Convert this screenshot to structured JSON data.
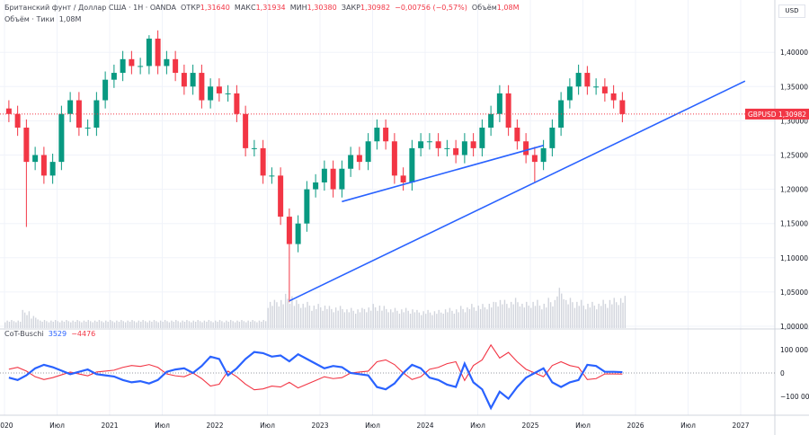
{
  "header": {
    "symbol_title": "Британский фунт / Доллар США · 1H · OANDA",
    "open_label": "ОТКР",
    "open": "1,31640",
    "high_label": "МАКС",
    "high": "1,31934",
    "low_label": "МИН",
    "low": "1,30380",
    "close_label": "ЗАКР",
    "close": "1,30982",
    "change": "−0,00756 (−0,57%)",
    "volume_label": "Объём",
    "volume": "1,08M",
    "volume_line_label": "Объём · Тики",
    "volume_line_value": "1,08M"
  },
  "price_axis": {
    "currency": "USD",
    "ticks": [
      "1,40000",
      "1,35000",
      "1,30000",
      "1,25000",
      "1,20000",
      "1,15000",
      "1,10000",
      "1,05000",
      "1,00000"
    ]
  },
  "last_price": {
    "symbol": "GBPUSD",
    "value": "1,30982",
    "color": "#f23645"
  },
  "cot": {
    "name": "CoT-Buschi",
    "blue_value": "3529",
    "red_value": "−4476",
    "ticks": [
      "100 000",
      "0",
      "−100 000"
    ]
  },
  "time_axis": [
    "2020",
    "Июл",
    "2021",
    "Июл",
    "2022",
    "Июл",
    "2023",
    "Июл",
    "2024",
    "Июл",
    "2025",
    "Июл",
    "2026",
    "Июл",
    "2027"
  ],
  "colors": {
    "up": "#089981",
    "down": "#f23645",
    "trendline": "#2962ff",
    "cot_blue": "#2962ff",
    "cot_red": "#f23645"
  },
  "chart_data": {
    "type": "candlestick",
    "start": "2020-01",
    "interval": "month",
    "ylim": [
      1.0,
      1.44
    ],
    "close": [
      1.31,
      1.29,
      1.24,
      1.25,
      1.22,
      1.24,
      1.31,
      1.33,
      1.29,
      1.29,
      1.33,
      1.36,
      1.37,
      1.39,
      1.38,
      1.38,
      1.42,
      1.38,
      1.39,
      1.37,
      1.35,
      1.37,
      1.33,
      1.35,
      1.34,
      1.34,
      1.31,
      1.26,
      1.26,
      1.22,
      1.22,
      1.16,
      1.12,
      1.15,
      1.2,
      1.21,
      1.23,
      1.2,
      1.23,
      1.25,
      1.24,
      1.27,
      1.29,
      1.27,
      1.22,
      1.21,
      1.26,
      1.27,
      1.27,
      1.26,
      1.26,
      1.25,
      1.27,
      1.26,
      1.29,
      1.31,
      1.34,
      1.29,
      1.27,
      1.25,
      1.24,
      1.26,
      1.29,
      1.33,
      1.35,
      1.37,
      1.35,
      1.35,
      1.34,
      1.33,
      1.30982
    ],
    "low_extremes": {
      "2020-03": 1.145,
      "2022-09": 1.035,
      "2025-01": 1.21
    },
    "high_extremes": {
      "2021-05": 1.425,
      "2025-07": 1.38
    },
    "volume_relative": [
      0.2,
      0.2,
      0.45,
      0.3,
      0.2,
      0.2,
      0.2,
      0.2,
      0.2,
      0.2,
      0.2,
      0.2,
      0.2,
      0.2,
      0.2,
      0.2,
      0.2,
      0.2,
      0.2,
      0.2,
      0.2,
      0.2,
      0.2,
      0.2,
      0.2,
      0.2,
      0.2,
      0.2,
      0.2,
      0.2,
      0.7,
      0.75,
      0.85,
      0.7,
      0.65,
      0.6,
      0.6,
      0.55,
      0.55,
      0.5,
      0.5,
      0.55,
      0.6,
      0.55,
      0.5,
      0.5,
      0.5,
      0.45,
      0.45,
      0.45,
      0.5,
      0.5,
      0.55,
      0.6,
      0.6,
      0.65,
      0.75,
      0.7,
      0.75,
      0.65,
      0.7,
      0.65,
      0.75,
      1.0,
      0.75,
      0.7,
      0.65,
      0.65,
      0.7,
      0.75,
      0.8
    ],
    "trendlines": [
      {
        "from": [
          "2022-09",
          1.037
        ],
        "to": [
          "2027-01",
          1.358
        ]
      },
      {
        "from": [
          "2023-03",
          1.182
        ],
        "to": [
          "2025-02",
          1.264
        ]
      }
    ],
    "cot_blue": [
      -20,
      -30,
      -10,
      20,
      35,
      25,
      10,
      -5,
      5,
      15,
      -5,
      -10,
      -15,
      -30,
      -40,
      -35,
      -45,
      -30,
      5,
      15,
      20,
      0,
      30,
      70,
      60,
      -10,
      20,
      60,
      90,
      85,
      70,
      75,
      50,
      80,
      60,
      40,
      20,
      30,
      25,
      0,
      -5,
      -10,
      -60,
      -70,
      -45,
      0,
      35,
      20,
      -20,
      -30,
      -50,
      -60,
      40,
      -40,
      -70,
      -150,
      -80,
      -110,
      -60,
      -20,
      0,
      20,
      -40,
      -60,
      -40,
      -30,
      35,
      30,
      5,
      5,
      3.529
    ],
    "cot_red": [
      16,
      24,
      8,
      -16,
      -28,
      -20,
      -8,
      4,
      -4,
      -12,
      4,
      8,
      12,
      24,
      32,
      28,
      36,
      24,
      -4,
      -12,
      -16,
      0,
      -24,
      -56,
      -48,
      8,
      -16,
      -48,
      -72,
      -68,
      -56,
      -60,
      -40,
      -64,
      -48,
      -32,
      -16,
      -24,
      -20,
      0,
      4,
      8,
      48,
      56,
      36,
      0,
      -28,
      -16,
      16,
      24,
      40,
      48,
      -32,
      32,
      56,
      120,
      64,
      88,
      48,
      16,
      0,
      -16,
      32,
      48,
      32,
      24,
      -28,
      -24,
      -4,
      -4,
      -4.476
    ],
    "cot_unit": "thousands",
    "cot_ylim": [
      -180,
      150
    ]
  }
}
